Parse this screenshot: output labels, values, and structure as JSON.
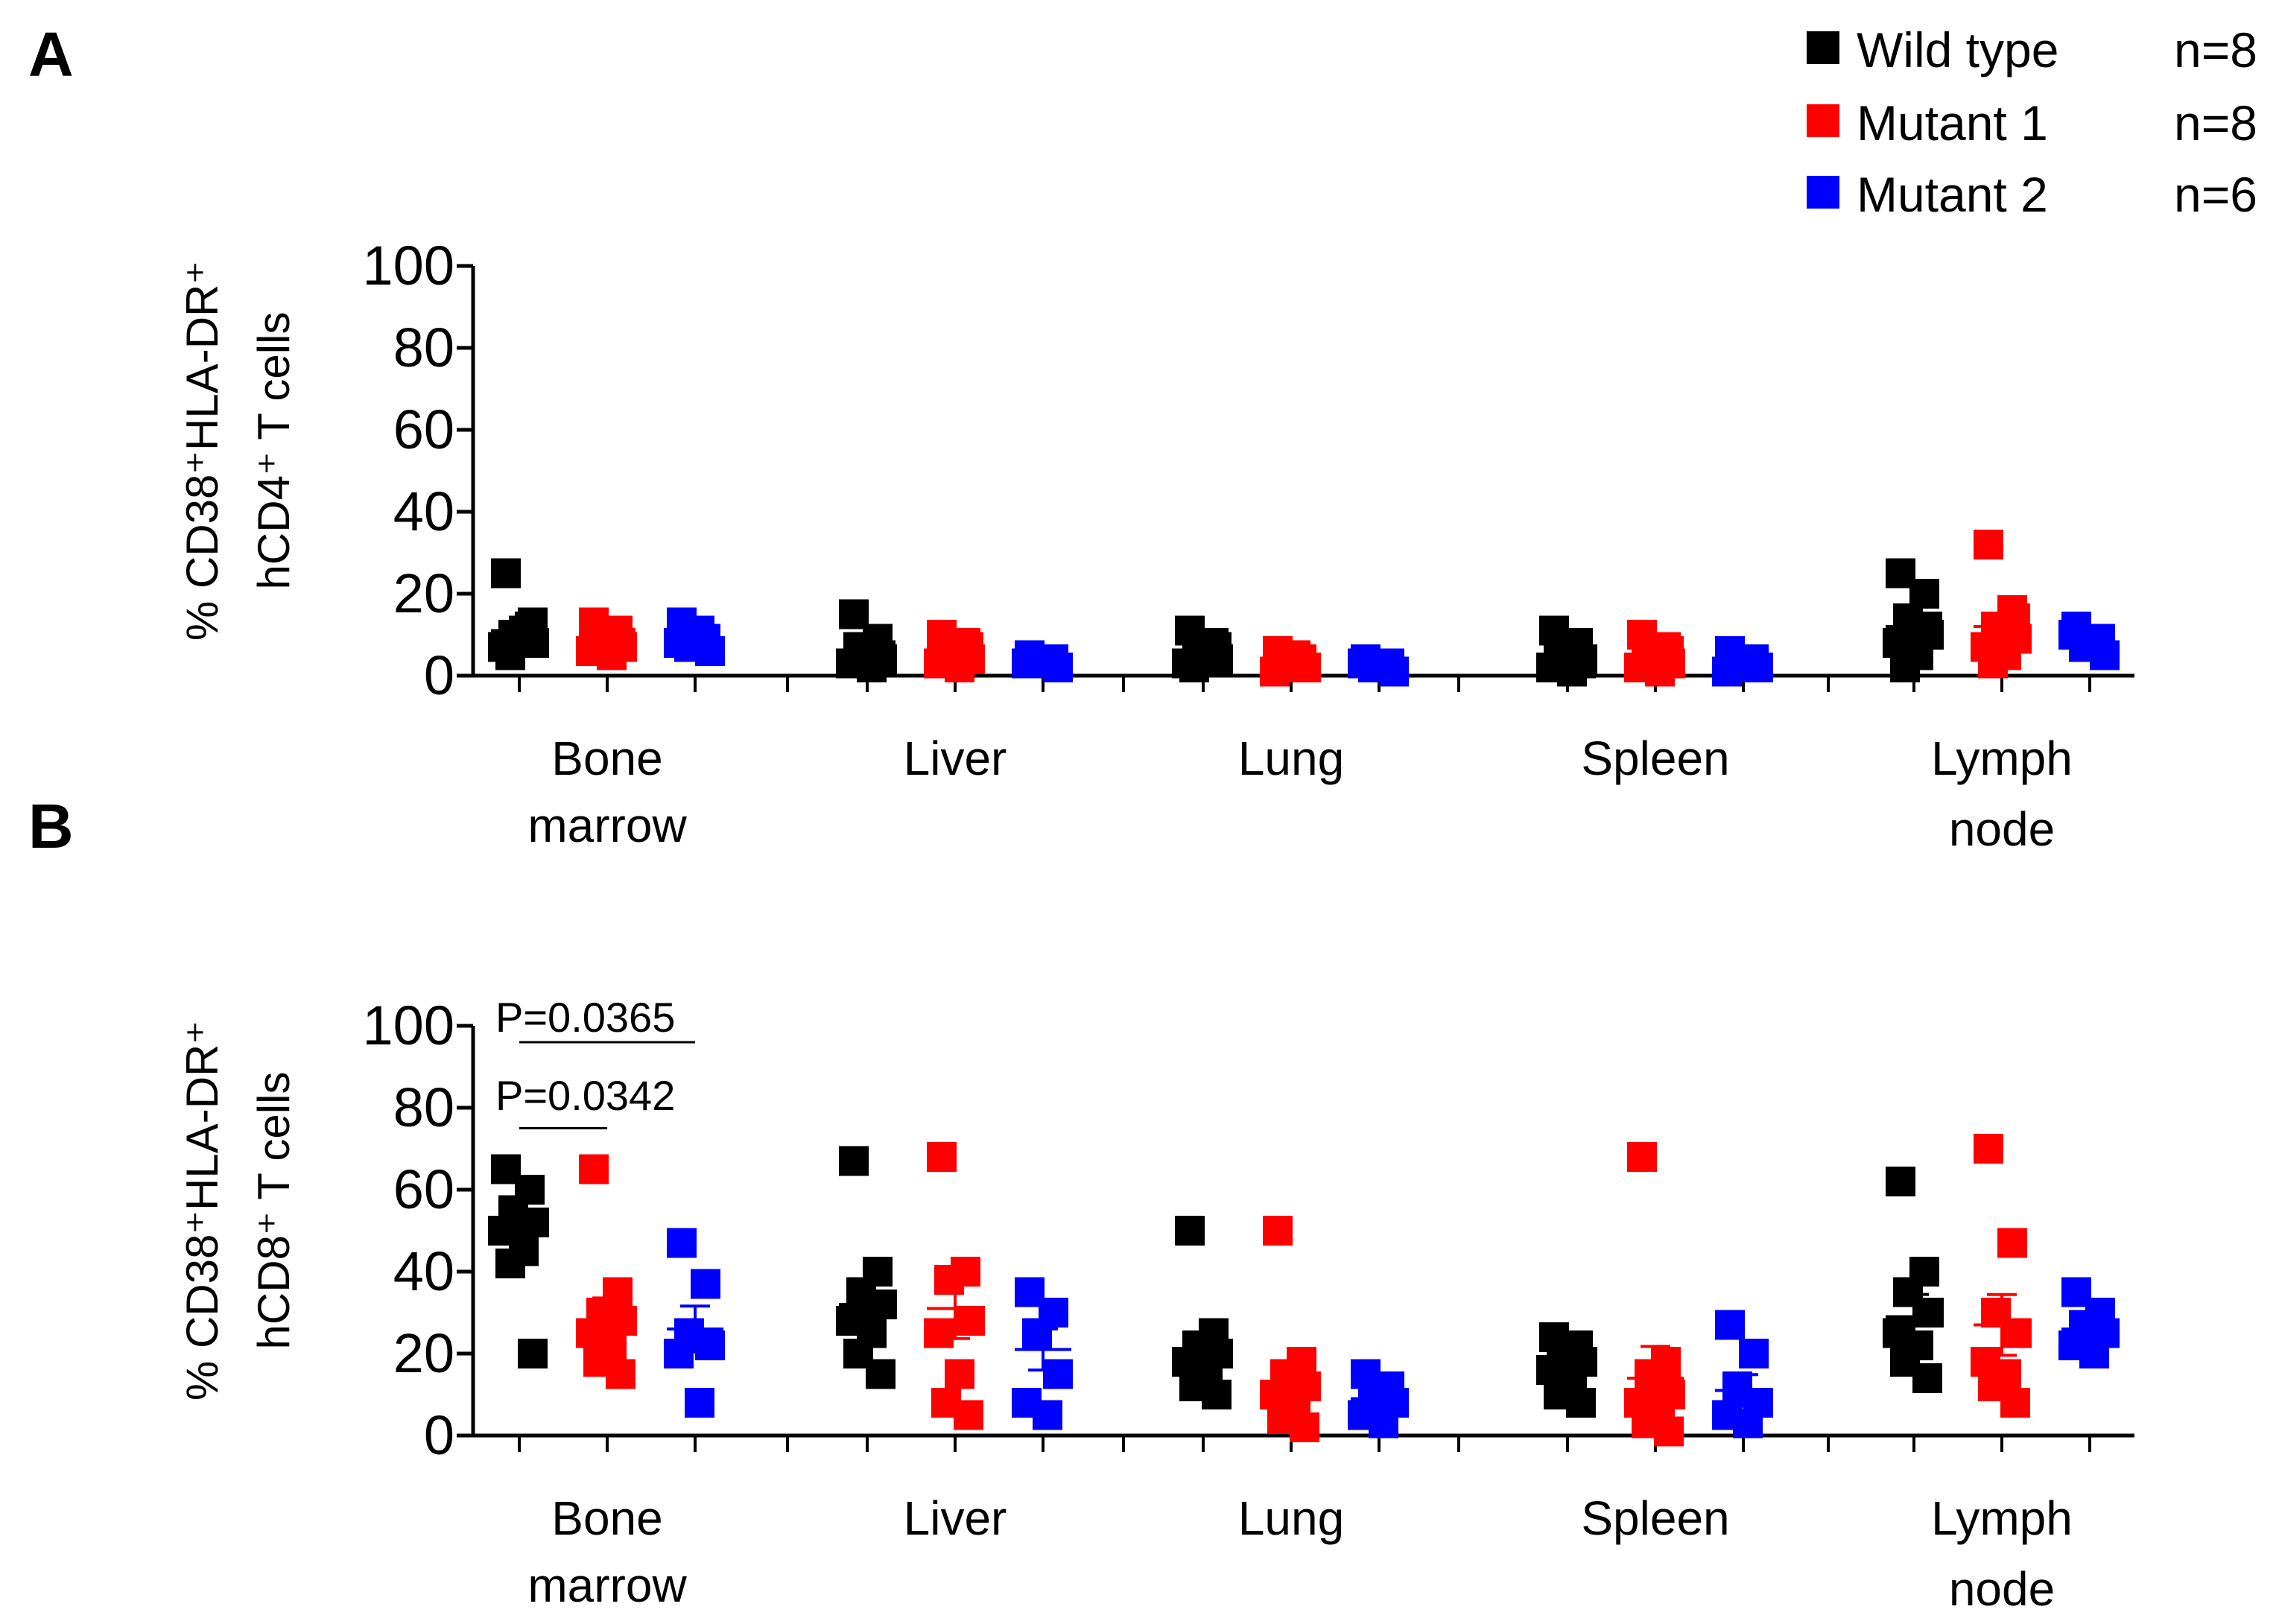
{
  "legend": [
    {
      "name": "Wild type",
      "n": "n=8",
      "color": "#000000"
    },
    {
      "name": "Mutant 1",
      "n": "n=8",
      "color": "#ff0000"
    },
    {
      "name": "Mutant 2",
      "n": "n=6",
      "color": "#0000ff"
    }
  ],
  "chart_data": [
    {
      "panel": "A",
      "type": "scatter",
      "ylabel_line1": "% CD38⁺HLA-DR⁺",
      "ylabel_line2": "hCD4⁺ T cells",
      "ylim": [
        0,
        100
      ],
      "yticks": [
        "0",
        "20",
        "40",
        "60",
        "80",
        "100"
      ],
      "categories": [
        {
          "line1": "Bone",
          "line2": "marrow"
        },
        {
          "line1": "Liver",
          "line2": ""
        },
        {
          "line1": "Lung",
          "line2": ""
        },
        {
          "line1": "Spleen",
          "line2": ""
        },
        {
          "line1": "Lymph",
          "line2": "node"
        }
      ],
      "series": [
        {
          "name": "Wild type",
          "color": "#000000",
          "values": [
            [
              25,
              12,
              10,
              8,
              7,
              11,
              5,
              13
            ],
            [
              15,
              9,
              6,
              4,
              3,
              2,
              7,
              5
            ],
            [
              11,
              8,
              6,
              4,
              3,
              5,
              2,
              7
            ],
            [
              11,
              8,
              6,
              4,
              2,
              1,
              5,
              3
            ],
            [
              25,
              20,
              14,
              10,
              8,
              5,
              2,
              12
            ]
          ],
          "means": [
            11,
            6,
            6,
            5,
            12
          ]
        },
        {
          "name": "Mutant 1",
          "color": "#ff0000",
          "values": [
            [
              13,
              11,
              9,
              7,
              6,
              5,
              10,
              8
            ],
            [
              10,
              8,
              6,
              4,
              3,
              2,
              5,
              7
            ],
            [
              6,
              4,
              3,
              2,
              1,
              5,
              3,
              2
            ],
            [
              10,
              7,
              5,
              3,
              2,
              1,
              4,
              6
            ],
            [
              32,
              16,
              12,
              9,
              7,
              5,
              3,
              14
            ]
          ],
          "means": [
            8,
            5,
            3,
            4,
            12
          ]
        },
        {
          "name": "Mutant 2",
          "color": "#0000ff",
          "values": [
            [
              13,
              9,
              7,
              6,
              8,
              11
            ],
            [
              5,
              4,
              3,
              2,
              3,
              4
            ],
            [
              4,
              3,
              2,
              1,
              3,
              2
            ],
            [
              6,
              4,
              3,
              2,
              1,
              2
            ],
            [
              12,
              9,
              7,
              5,
              10,
              8
            ]
          ],
          "means": [
            8,
            3,
            2,
            3,
            8
          ]
        }
      ],
      "annotations": []
    },
    {
      "panel": "B",
      "type": "scatter",
      "ylabel_line1": "% CD38⁺HLA-DR⁺",
      "ylabel_line2": "hCD8⁺ T cells",
      "ylim": [
        0,
        100
      ],
      "yticks": [
        "0",
        "20",
        "40",
        "60",
        "80",
        "100"
      ],
      "categories": [
        {
          "line1": "Bone",
          "line2": "marrow"
        },
        {
          "line1": "Liver",
          "line2": ""
        },
        {
          "line1": "Lung",
          "line2": ""
        },
        {
          "line1": "Spleen",
          "line2": ""
        },
        {
          "line1": "Lymph",
          "line2": "node"
        }
      ],
      "series": [
        {
          "name": "Wild type",
          "color": "#000000",
          "values": [
            [
              65,
              60,
              55,
              52,
              50,
              45,
              42,
              20
            ],
            [
              67,
              40,
              35,
              32,
              28,
              25,
              20,
              15
            ],
            [
              50,
              25,
              22,
              20,
              18,
              15,
              12,
              10
            ],
            [
              24,
              22,
              20,
              18,
              16,
              14,
              10,
              8
            ],
            [
              62,
              40,
              35,
              30,
              25,
              22,
              18,
              14
            ]
          ],
          "means": [
            49,
            32,
            18,
            17,
            29
          ]
        },
        {
          "name": "Mutant 1",
          "color": "#ff0000",
          "values": [
            [
              65,
              35,
              30,
              28,
              25,
              22,
              18,
              15
            ],
            [
              68,
              40,
              38,
              28,
              25,
              15,
              8,
              5
            ],
            [
              50,
              18,
              15,
              12,
              10,
              6,
              4,
              2
            ],
            [
              68,
              18,
              15,
              10,
              8,
              5,
              3,
              1
            ],
            [
              70,
              47,
              30,
              25,
              18,
              15,
              12,
              8
            ]
          ],
          "means": [
            28,
            31,
            12,
            14,
            27
          ]
        },
        {
          "name": "Mutant 2",
          "color": "#0000ff",
          "values": [
            [
              47,
              37,
              25,
              22,
              20,
              8
            ],
            [
              35,
              30,
              25,
              15,
              8,
              5
            ],
            [
              15,
              12,
              10,
              8,
              5,
              3
            ],
            [
              27,
              20,
              12,
              8,
              5,
              3
            ],
            [
              35,
              30,
              27,
              25,
              22,
              20
            ]
          ],
          "means": [
            26,
            21,
            9,
            11,
            26
          ]
        }
      ],
      "annotations": [
        {
          "text": "P=0.0365",
          "from_category": 0,
          "from_series": 0,
          "to_series": 2,
          "y": 96
        },
        {
          "text": "P=0.0342",
          "from_category": 0,
          "from_series": 0,
          "to_series": 1,
          "y": 75
        }
      ]
    }
  ]
}
